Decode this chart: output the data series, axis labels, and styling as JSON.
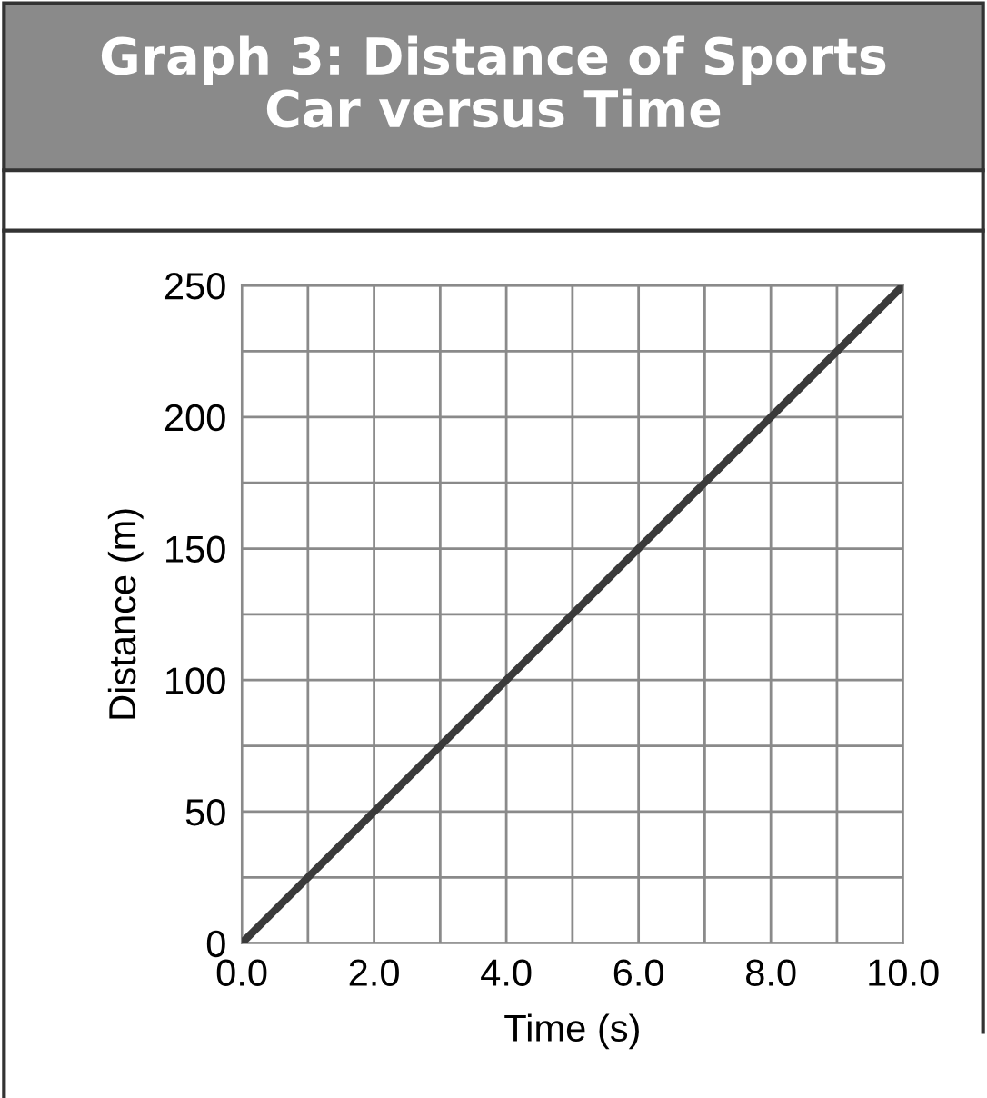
{
  "chart_data": {
    "type": "line",
    "title": "Graph 3: Distance of Sports\nCar versus Time",
    "xlabel": "Time (s)",
    "ylabel": "Distance (m)",
    "x": [
      0,
      10
    ],
    "series": [
      {
        "color": "#3a3a3a",
        "values": [
          0,
          250
        ]
      }
    ],
    "xlim": [
      0,
      10
    ],
    "ylim": [
      0,
      250
    ],
    "xticks": [
      {
        "value": 0,
        "label": "0.0"
      },
      {
        "value": 1,
        "label": null
      },
      {
        "value": 2,
        "label": "2.0"
      },
      {
        "value": 3,
        "label": null
      },
      {
        "value": 4,
        "label": "4.0"
      },
      {
        "value": 5,
        "label": null
      },
      {
        "value": 6,
        "label": "6.0"
      },
      {
        "value": 7,
        "label": null
      },
      {
        "value": 8,
        "label": "8.0"
      },
      {
        "value": 9,
        "label": null
      },
      {
        "value": 10,
        "label": "10.0"
      }
    ],
    "yticks": [
      0,
      {
        "value": 25,
        "label": null
      },
      50,
      {
        "value": 75,
        "label": null
      },
      100,
      {
        "value": 125,
        "label": null
      },
      150,
      {
        "value": 175,
        "label": null
      },
      200,
      {
        "value": 225,
        "label": null
      },
      250
    ],
    "grid": true,
    "marker": "none",
    "line_style": "solid"
  }
}
